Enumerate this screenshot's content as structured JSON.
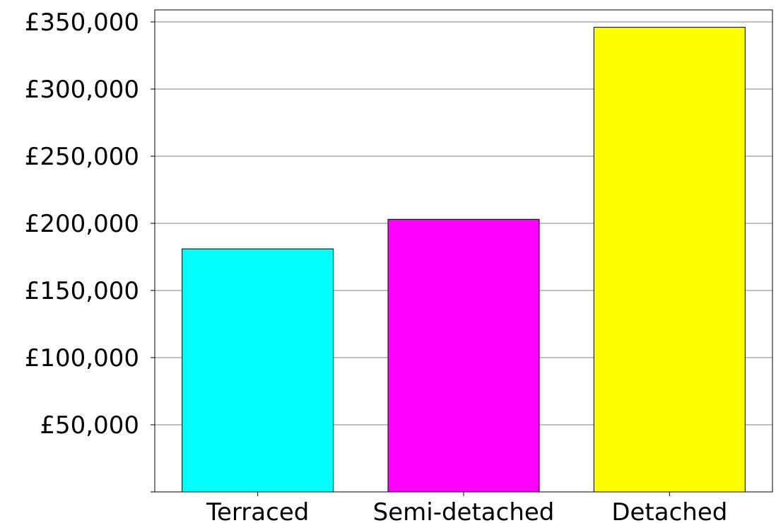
{
  "chart_data": {
    "type": "bar",
    "title": "",
    "xlabel": "",
    "ylabel": "",
    "categories": [
      "Terraced",
      "Semi-detached",
      "Detached"
    ],
    "values": [
      181000,
      203000,
      346000
    ],
    "colors": [
      "#00ffff",
      "#ff00ff",
      "#ffff00"
    ],
    "ylim": [
      0,
      350000
    ],
    "yticks": [
      50000,
      100000,
      150000,
      200000,
      250000,
      300000,
      350000
    ],
    "ytick_labels": [
      "£50,000",
      "£100,000",
      "£150,000",
      "£200,000",
      "£250,000",
      "£300,000",
      "£350,000"
    ],
    "grid": true
  }
}
